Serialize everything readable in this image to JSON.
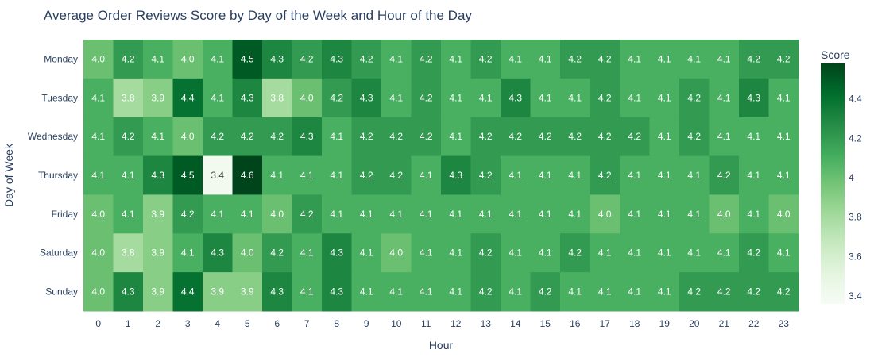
{
  "chart_data": {
    "type": "heatmap",
    "title": "Average Order Reviews Score by Day of the Week and Hour of the Day",
    "xlabel": "Hour",
    "ylabel": "Day of Week",
    "x_categories": [
      "0",
      "1",
      "2",
      "3",
      "4",
      "5",
      "6",
      "7",
      "8",
      "9",
      "10",
      "11",
      "12",
      "13",
      "14",
      "15",
      "16",
      "17",
      "18",
      "19",
      "20",
      "21",
      "22",
      "23"
    ],
    "y_categories": [
      "Monday",
      "Tuesday",
      "Wednesday",
      "Thursday",
      "Friday",
      "Saturday",
      "Sunday"
    ],
    "values": [
      [
        4.0,
        4.2,
        4.1,
        4.0,
        4.1,
        4.5,
        4.3,
        4.2,
        4.3,
        4.2,
        4.1,
        4.2,
        4.1,
        4.2,
        4.1,
        4.1,
        4.2,
        4.2,
        4.1,
        4.1,
        4.1,
        4.1,
        4.2,
        4.2
      ],
      [
        4.1,
        3.8,
        3.9,
        4.4,
        4.1,
        4.3,
        3.8,
        4.0,
        4.2,
        4.3,
        4.1,
        4.2,
        4.1,
        4.1,
        4.3,
        4.1,
        4.1,
        4.2,
        4.1,
        4.1,
        4.2,
        4.1,
        4.3,
        4.1
      ],
      [
        4.1,
        4.2,
        4.1,
        4.0,
        4.2,
        4.2,
        4.2,
        4.3,
        4.1,
        4.2,
        4.2,
        4.2,
        4.1,
        4.2,
        4.2,
        4.2,
        4.2,
        4.2,
        4.2,
        4.1,
        4.2,
        4.1,
        4.1,
        4.1
      ],
      [
        4.1,
        4.1,
        4.3,
        4.5,
        3.4,
        4.6,
        4.1,
        4.1,
        4.1,
        4.2,
        4.2,
        4.1,
        4.3,
        4.2,
        4.1,
        4.1,
        4.1,
        4.2,
        4.1,
        4.1,
        4.1,
        4.2,
        4.1,
        4.1
      ],
      [
        4.0,
        4.1,
        3.9,
        4.2,
        4.1,
        4.1,
        4.0,
        4.2,
        4.1,
        4.1,
        4.1,
        4.1,
        4.1,
        4.1,
        4.1,
        4.1,
        4.1,
        4.0,
        4.1,
        4.1,
        4.1,
        4.0,
        4.1,
        4.0
      ],
      [
        4.0,
        3.8,
        3.9,
        4.1,
        4.3,
        4.0,
        4.2,
        4.1,
        4.3,
        4.1,
        4.0,
        4.1,
        4.1,
        4.2,
        4.1,
        4.1,
        4.2,
        4.1,
        4.1,
        4.1,
        4.1,
        4.1,
        4.2,
        4.1
      ],
      [
        4.0,
        4.3,
        3.9,
        4.4,
        3.9,
        3.9,
        4.3,
        4.1,
        4.3,
        4.1,
        4.1,
        4.1,
        4.1,
        4.2,
        4.1,
        4.2,
        4.1,
        4.1,
        4.1,
        4.1,
        4.2,
        4.2,
        4.2,
        4.2
      ]
    ],
    "colorscale": "Greens",
    "zmin": 3.36,
    "zmax": 4.58,
    "colorbar": {
      "title": "Score",
      "ticks": [
        3.4,
        3.6,
        3.8,
        4,
        4.2,
        4.4
      ]
    },
    "grid": false
  }
}
